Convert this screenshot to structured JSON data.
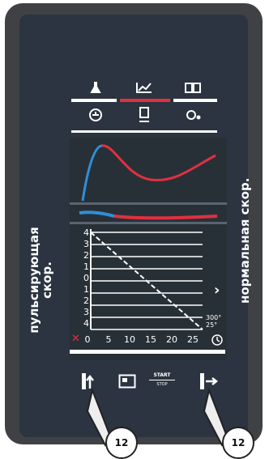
{
  "side_labels": {
    "left_line1": "пульсирующая",
    "left_line2": "скор.",
    "right": "нормальная скор."
  },
  "chart_data": {
    "type": "line",
    "y_tick_labels": [
      "4",
      "3",
      "2",
      "1",
      "0",
      "1",
      "2",
      "3",
      "4"
    ],
    "x_tick_labels": [
      "0",
      "5",
      "10",
      "15",
      "20",
      "25"
    ],
    "xlim": [
      0,
      25
    ],
    "ylim": [
      -4,
      4
    ],
    "series": [
      {
        "values_x": [
          0,
          25
        ],
        "values_y": [
          4,
          -4
        ]
      }
    ],
    "grid": true
  },
  "indicators": {
    "temp_top": "300°",
    "temp_bottom": "25°"
  },
  "bottom_bar": {
    "start_top": "START",
    "start_bottom": "STOP"
  },
  "callouts": [
    "12",
    "12"
  ],
  "colors": {
    "screen_bg": "#2b3440",
    "accent_red": "#e03040",
    "accent_blue": "#2f8fd8",
    "white": "#ffffff"
  },
  "icons": {
    "menu": [
      "flask-icon",
      "chart-icon",
      "book-icon",
      "pressure-dial-icon",
      "export-icon",
      "settings-icon"
    ],
    "right_arrow": "chevron-right-icon",
    "timer": "timer-icon",
    "bottom": [
      "pressure-up-icon",
      "display-icon",
      "start-stop-icon",
      "forward-pressure-icon"
    ]
  }
}
